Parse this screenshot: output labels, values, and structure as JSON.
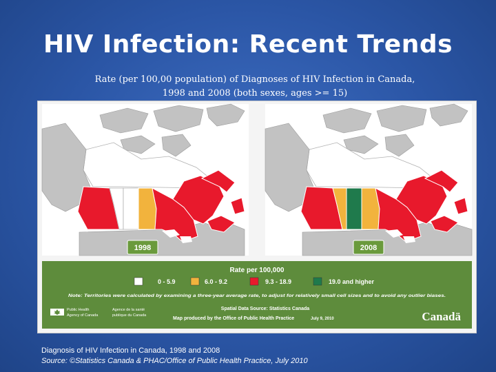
{
  "slide": {
    "title": "HIV Infection: Recent Trends",
    "subtitle_line1": "Rate (per 100,00 population) of Diagnoses of HIV Infection in Canada,",
    "subtitle_line2": "1998 and 2008 (both sexes, ages >= 15)",
    "caption": "Diagnosis of HIV Infection in Canada, 1998 and 2008",
    "source": "Source: ©Statistics Canada & PHAC/Office of Public Health Practice, July 2010"
  },
  "maps": [
    {
      "year": "1998"
    },
    {
      "year": "2008"
    }
  ],
  "legend": {
    "title": "Rate per 100,000",
    "items": [
      {
        "label": "0 - 5.9",
        "color": "#ffffff"
      },
      {
        "label": "6.0 - 9.2",
        "color": "#f2b33d"
      },
      {
        "label": "9.3 - 18.9",
        "color": "#e8192c"
      },
      {
        "label": "19.0 and higher",
        "color": "#1f7a4c"
      }
    ],
    "note": "Note: Territories were calculated by examining a three-year average rate, to adjust for relatively small cell sizes and to avoid any outlier biases.",
    "agency_en_1": "Public Health",
    "agency_en_2": "Agency of Canada",
    "agency_fr_1": "Agence de la santé",
    "agency_fr_2": "publique du Canada",
    "data_source": "Spatial Data Source: Statistics Canada",
    "produced_by": "Map produced by the Office of Public Health Practice",
    "date": "July 9, 2010",
    "wordmark": "Canadä"
  },
  "colors": {
    "land_grey": "#c2c2c2",
    "water": "#ffffff",
    "legend_bg": "#5e8c3c",
    "white": "#ffffff",
    "orange": "#f2b33d",
    "red": "#e8192c",
    "green": "#1f7a4c",
    "badge": "#6a9a3c"
  },
  "provinces": [
    {
      "name": "BC",
      "rate_1998": "9.3 - 18.9",
      "rate_2008": "9.3 - 18.9"
    },
    {
      "name": "AB",
      "rate_1998": "0 - 5.9",
      "rate_2008": "6.0 - 9.2"
    },
    {
      "name": "SK",
      "rate_1998": "0 - 5.9",
      "rate_2008": "19.0 and higher"
    },
    {
      "name": "MB",
      "rate_1998": "6.0 - 9.2",
      "rate_2008": "6.0 - 9.2"
    },
    {
      "name": "ON",
      "rate_1998": "9.3 - 18.9",
      "rate_2008": "9.3 - 18.9"
    },
    {
      "name": "QC",
      "rate_1998": "9.3 - 18.9",
      "rate_2008": "9.3 - 18.9"
    },
    {
      "name": "Territories",
      "rate_1998": "0 - 5.9",
      "rate_2008": "0 - 5.9"
    }
  ]
}
